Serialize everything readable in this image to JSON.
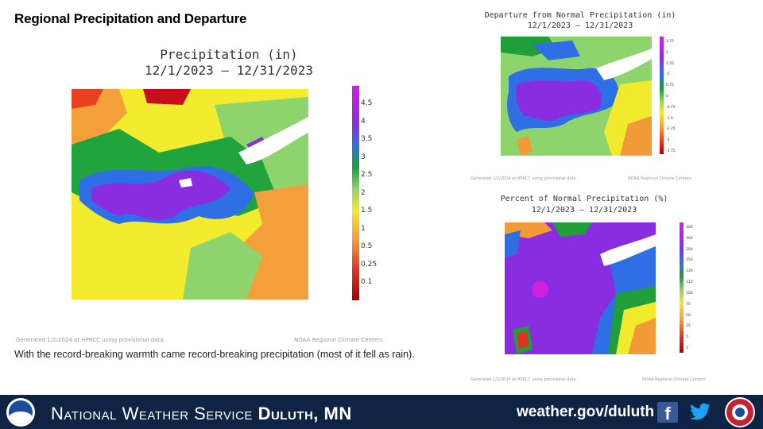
{
  "slide": {
    "title": "Regional Precipitation and Departure",
    "caption": "With the record-breaking warmth came record-breaking precipitation (most of it fell as rain)."
  },
  "maps": {
    "precip": {
      "title": "Precipitation (in)",
      "dates": "12/1/2023 – 12/31/2023",
      "legend": [
        "4.5",
        "4",
        "3.5",
        "3",
        "2.5",
        "2",
        "1.5",
        "1",
        "0.5",
        "0.25",
        "0.1"
      ],
      "footnote_left": "Generated 1/2/2024 at HPRCC using provisional data.",
      "footnote_right": "NOAA Regional Climate Centers"
    },
    "departure": {
      "title": "Departure from Normal Precipitation (in)",
      "dates": "12/1/2023 – 12/31/2023",
      "legend": [
        "3.75",
        "2",
        "1.25",
        ".5",
        "0.75",
        "0",
        "-0.75",
        "-1.5",
        "-2.25",
        "-3",
        "-3.75"
      ],
      "footnote_left": "Generated 1/2/2024 at HPRCC using provisional data.",
      "footnote_right": "NOAA Regional Climate Centers"
    },
    "percent": {
      "title": "Percent of Normal Precipitation (%)",
      "dates": "12/1/2023 – 12/31/2023",
      "legend": [
        "400",
        "300",
        "200",
        "150",
        "130",
        "110",
        "100",
        "75",
        "50",
        "25",
        "5",
        "2"
      ],
      "footnote_left": "Generated 1/2/2024 at HPRCC using provisional data.",
      "footnote_right": "NOAA Regional Climate Centers"
    }
  },
  "footer": {
    "org": "National Weather Service",
    "office": "Duluth, MN",
    "url": "weather.gov/duluth",
    "facebook_glyph": "f"
  },
  "colors": {
    "footer_bg": "#0f2344",
    "scale_magenta": "#d020e0",
    "scale_purple": "#8c2ee0",
    "scale_blue": "#2f6fe6",
    "scale_green": "#1f9e3a",
    "scale_lightgreen": "#8fd36a",
    "scale_yellow": "#f1ea2d",
    "scale_orange": "#f39a38",
    "scale_red": "#e23221",
    "scale_darkred": "#a3000b"
  },
  "icons": {
    "noaa": "noaa-logo",
    "facebook": "facebook-icon",
    "twitter": "twitter-icon",
    "nws": "nws-logo"
  }
}
